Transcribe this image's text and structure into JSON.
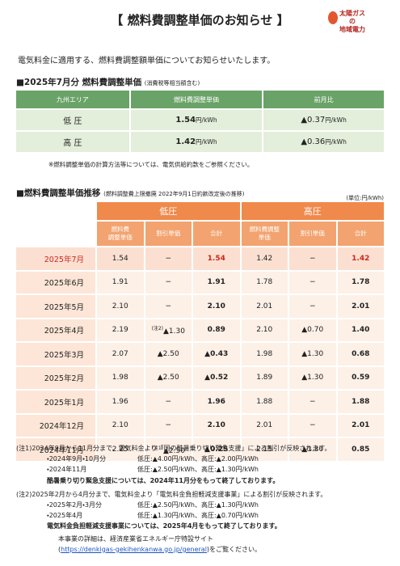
{
  "header": {
    "title": "【 燃料費調整単価のお知らせ 】",
    "logo": {
      "line1": "太陽ガス",
      "line2": "の",
      "line3": "地域電力"
    }
  },
  "intro": "電気料金に適用する、燃料費調整額単価についてお知らせいたします。",
  "current": {
    "heading": "■2025年7月分 燃料費調整単価",
    "heading_note": "(消費税等相当額含む)",
    "columns": [
      "九州エリア",
      "燃料費調整単価",
      "前月比"
    ],
    "rows": [
      {
        "label": "低 圧",
        "value": "1.54",
        "unit": "円/kWh",
        "change": "▲0.37",
        "change_unit": "円/kWh"
      },
      {
        "label": "高 圧",
        "value": "1.42",
        "unit": "円/kWh",
        "change": "▲0.36",
        "change_unit": "円/kWh"
      }
    ],
    "note": "※燃料調整単価の計算方法等については、電気供給約款をご参照ください。"
  },
  "history": {
    "heading": "■燃料費調整単価推移",
    "heading_note": "(燃料調整費上限撤廃 2022年9月1日約款改定後の推移)",
    "unit": "(単位:円/kWh)",
    "groups": [
      "低圧",
      "高圧"
    ],
    "columns": [
      "燃料費\n調整単価",
      "割引単価",
      "合計",
      "燃料費調整\n単価",
      "割引単価",
      "合計"
    ],
    "rows": [
      [
        "2025年7月",
        "1.54",
        "−",
        "1.54",
        "1.42",
        "−",
        "1.42"
      ],
      [
        "2025年6月",
        "1.91",
        "−",
        "1.91",
        "1.78",
        "−",
        "1.78"
      ],
      [
        "2025年5月",
        "2.10",
        "−",
        "2.10",
        "2.01",
        "−",
        "2.01"
      ],
      [
        "2025年4月",
        "2.19",
        {
          "note": "(注2)",
          "value": "▲1.30"
        },
        "0.89",
        "2.10",
        "▲0.70",
        "1.40"
      ],
      [
        "2025年3月",
        "2.07",
        "▲2.50",
        "▲0.43",
        "1.98",
        "▲1.30",
        "0.68"
      ],
      [
        "2025年2月",
        "1.98",
        "▲2.50",
        "▲0.52",
        "1.89",
        "▲1.30",
        "0.59"
      ],
      [
        "2025年1月",
        "1.96",
        "−",
        "1.96",
        "1.88",
        "−",
        "1.88"
      ],
      [
        "2024年12月",
        "2.10",
        "−",
        "2.10",
        "2.01",
        "−",
        "2.01"
      ],
      [
        "2024年11月",
        "2.25",
        {
          "note": "(注1)",
          "value": "▲2.50"
        },
        "▲0.25",
        "2.15",
        "▲1.30",
        "0.85"
      ]
    ]
  },
  "notes": [
    {
      "label": "(注1)",
      "text": "2024年9月から11月分まで、電気料金より「国の酷暑乗り切り緊急支援」による割引が反映されます。",
      "items": [
        {
          "period": "・2024年9月・10月分",
          "detail": "低圧:▲4.00円/kWh、高圧:▲2.00円/kWh"
        },
        {
          "period": "・2024年11月",
          "detail": "低圧:▲2.50円/kWh、高圧:▲1.30円/kWh"
        }
      ],
      "footer": "酷暑乗り切り緊急支援については、2024年11月分をもって終了しております。"
    },
    {
      "label": "(注2)",
      "text": "2025年2月から4月分まで、電気料金より「電気料金負担軽減支援事業」による割引が反映されます。",
      "items": [
        {
          "period": "・2025年2月・3月分",
          "detail": "低圧:▲2.50円/kWh、高圧:▲1.30円/kWh"
        },
        {
          "period": "・2025年4月",
          "detail": "低圧:▲1.30円/kWh、高圧:▲0.70円/kWh"
        }
      ],
      "footer": "電気料金負担軽減支援事業については、2025年4月をもって終了しております。"
    }
  ],
  "source": {
    "text": "本事業の詳細は、経済産業省エネルギー庁特設サイト",
    "link_prefix": "(",
    "link": "https://denkigas-gekihenkanwa.go.jp/general",
    "link_suffix": ")をご覧ください。"
  }
}
